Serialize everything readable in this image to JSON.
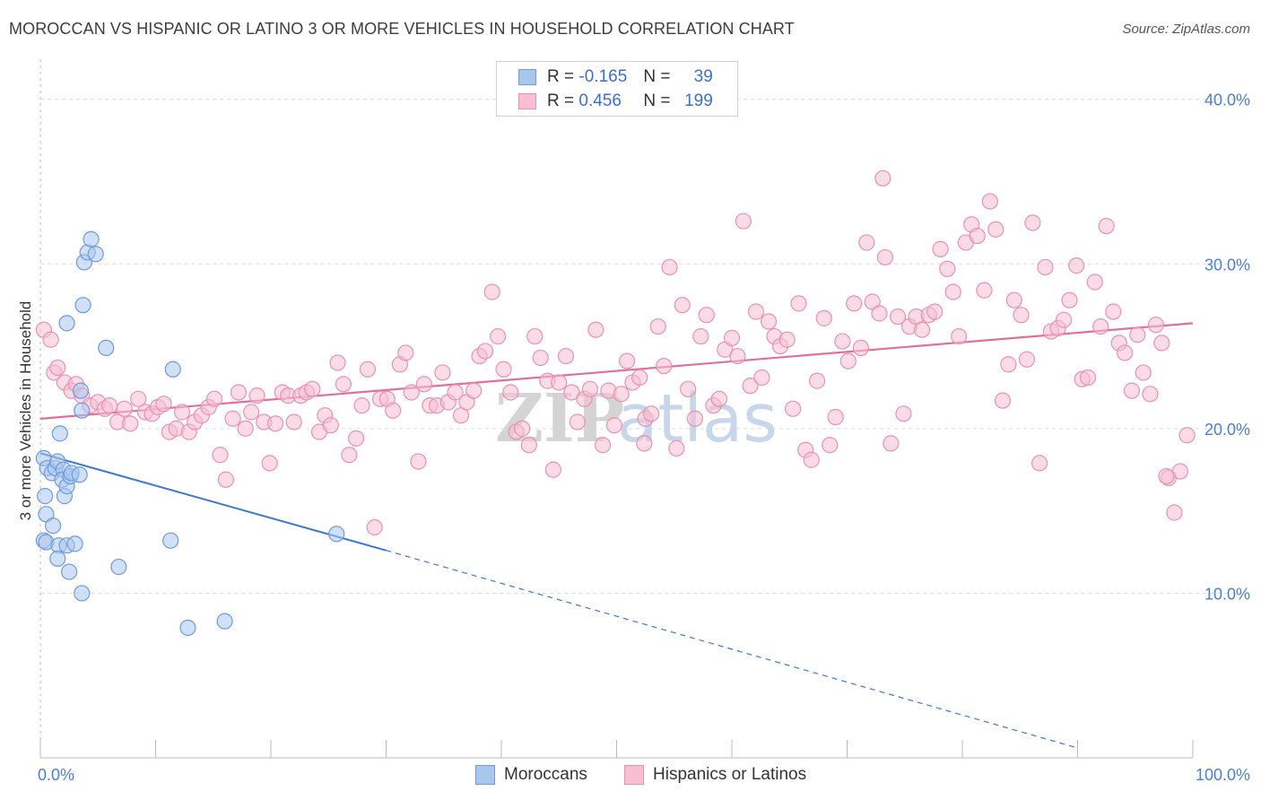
{
  "title": "MOROCCAN VS HISPANIC OR LATINO 3 OR MORE VEHICLES IN HOUSEHOLD CORRELATION CHART",
  "source": "Source: ZipAtlas.com",
  "watermark": {
    "zip": "ZIP",
    "atlas": "atlas"
  },
  "legend": {
    "rows": [
      {
        "r_label": "R =",
        "r_value": "-0.165",
        "n_label": "N =",
        "n_value": "39",
        "color": "#a9c6ef",
        "border": "#6f9ad8"
      },
      {
        "r_label": "R =",
        "r_value": "0.456",
        "n_label": "N =",
        "n_value": "199",
        "color": "#f7bfd1",
        "border": "#e792ae"
      }
    ]
  },
  "bottom_legend": [
    {
      "label": "Moroccans",
      "color": "#a9c6ef",
      "border": "#6f9ad8"
    },
    {
      "label": "Hispanics or Latinos",
      "color": "#f7bfd1",
      "border": "#e792ae"
    }
  ],
  "chart_data": {
    "type": "scatter",
    "title": "MOROCCAN VS HISPANIC OR LATINO 3 OR MORE VEHICLES IN HOUSEHOLD CORRELATION CHART",
    "xlabel": "",
    "ylabel": "3 or more Vehicles in Household",
    "xlim": [
      0,
      100
    ],
    "ylim": [
      0,
      42
    ],
    "x_tick_labels": [
      "0.0%",
      "100.0%"
    ],
    "y_ticks": [
      10,
      20,
      30,
      40
    ],
    "y_tick_labels": [
      "10.0%",
      "20.0%",
      "30.0%",
      "40.0%"
    ],
    "grid": true,
    "legend_position": "top-center",
    "series": [
      {
        "name": "Moroccans",
        "color": "#6f9ad8",
        "fill": "#a9c6ef",
        "trend": {
          "x": [
            0,
            30
          ],
          "y": [
            18.5,
            12.6
          ],
          "dashed_to": [
            90,
            0.6
          ],
          "color": "#3a78d4"
        },
        "points": [
          [
            0.3,
            18.2
          ],
          [
            0.6,
            17.6
          ],
          [
            1.0,
            17.3
          ],
          [
            1.3,
            17.6
          ],
          [
            1.5,
            18.0
          ],
          [
            1.7,
            19.7
          ],
          [
            2.0,
            17.5
          ],
          [
            1.9,
            16.9
          ],
          [
            2.1,
            15.9
          ],
          [
            2.3,
            16.5
          ],
          [
            2.6,
            17.1
          ],
          [
            2.7,
            17.3
          ],
          [
            3.4,
            17.2
          ],
          [
            3.6,
            21.1
          ],
          [
            3.5,
            22.3
          ],
          [
            3.7,
            27.5
          ],
          [
            2.3,
            26.4
          ],
          [
            3.8,
            30.1
          ],
          [
            4.1,
            30.7
          ],
          [
            4.4,
            31.5
          ],
          [
            4.8,
            30.6
          ],
          [
            5.7,
            24.9
          ],
          [
            0.4,
            15.9
          ],
          [
            0.5,
            14.8
          ],
          [
            1.1,
            14.1
          ],
          [
            0.3,
            13.2
          ],
          [
            0.5,
            13.1
          ],
          [
            1.6,
            12.9
          ],
          [
            2.3,
            12.9
          ],
          [
            3.0,
            13.0
          ],
          [
            1.5,
            12.1
          ],
          [
            2.5,
            11.3
          ],
          [
            3.6,
            10.0
          ],
          [
            6.8,
            11.6
          ],
          [
            11.3,
            13.2
          ],
          [
            11.5,
            23.6
          ],
          [
            12.8,
            7.9
          ],
          [
            16.0,
            8.3
          ],
          [
            25.7,
            13.6
          ]
        ]
      },
      {
        "name": "Hispanics or Latinos",
        "color": "#e792ae",
        "fill": "#f7bfd1",
        "trend": {
          "x": [
            0,
            100
          ],
          "y": [
            20.6,
            26.4
          ],
          "color": "#e0709a"
        },
        "points": [
          [
            0.3,
            26.0
          ],
          [
            0.9,
            25.4
          ],
          [
            1.2,
            23.4
          ],
          [
            1.5,
            23.7
          ],
          [
            2.1,
            22.8
          ],
          [
            2.7,
            22.3
          ],
          [
            3.1,
            22.7
          ],
          [
            3.6,
            22.0
          ],
          [
            4.3,
            21.4
          ],
          [
            5.0,
            21.6
          ],
          [
            5.6,
            21.2
          ],
          [
            6.0,
            21.4
          ],
          [
            6.7,
            20.4
          ],
          [
            7.3,
            21.2
          ],
          [
            7.8,
            20.3
          ],
          [
            8.5,
            21.8
          ],
          [
            9.1,
            21.0
          ],
          [
            9.7,
            20.9
          ],
          [
            10.2,
            21.3
          ],
          [
            10.7,
            21.5
          ],
          [
            11.2,
            19.8
          ],
          [
            11.8,
            20.0
          ],
          [
            12.3,
            21.0
          ],
          [
            12.9,
            19.8
          ],
          [
            13.4,
            20.4
          ],
          [
            14.0,
            20.8
          ],
          [
            14.6,
            21.3
          ],
          [
            15.1,
            21.8
          ],
          [
            15.6,
            18.4
          ],
          [
            16.1,
            16.9
          ],
          [
            16.7,
            20.6
          ],
          [
            17.2,
            22.2
          ],
          [
            17.8,
            20.0
          ],
          [
            18.3,
            21.0
          ],
          [
            18.8,
            22.0
          ],
          [
            19.4,
            20.4
          ],
          [
            19.9,
            17.9
          ],
          [
            20.4,
            20.3
          ],
          [
            21.0,
            22.2
          ],
          [
            21.5,
            22.0
          ],
          [
            22.0,
            20.4
          ],
          [
            22.6,
            22.0
          ],
          [
            23.1,
            22.2
          ],
          [
            23.6,
            22.4
          ],
          [
            24.2,
            19.8
          ],
          [
            24.7,
            20.8
          ],
          [
            25.2,
            20.2
          ],
          [
            25.8,
            24.0
          ],
          [
            26.3,
            22.7
          ],
          [
            26.8,
            18.4
          ],
          [
            27.4,
            19.4
          ],
          [
            27.9,
            21.4
          ],
          [
            28.4,
            23.6
          ],
          [
            29.0,
            14.0
          ],
          [
            29.5,
            21.8
          ],
          [
            30.1,
            21.8
          ],
          [
            30.6,
            21.1
          ],
          [
            31.2,
            23.9
          ],
          [
            31.7,
            24.6
          ],
          [
            32.2,
            22.2
          ],
          [
            32.8,
            18.0
          ],
          [
            33.3,
            22.7
          ],
          [
            33.8,
            21.4
          ],
          [
            34.4,
            21.4
          ],
          [
            34.9,
            23.4
          ],
          [
            35.4,
            21.6
          ],
          [
            36.0,
            22.2
          ],
          [
            36.5,
            20.8
          ],
          [
            37.0,
            21.6
          ],
          [
            37.6,
            22.3
          ],
          [
            38.1,
            24.4
          ],
          [
            38.6,
            24.7
          ],
          [
            39.2,
            28.3
          ],
          [
            39.7,
            25.6
          ],
          [
            40.2,
            23.6
          ],
          [
            40.8,
            22.2
          ],
          [
            41.3,
            19.8
          ],
          [
            41.8,
            20.0
          ],
          [
            42.4,
            19.0
          ],
          [
            42.9,
            25.6
          ],
          [
            43.4,
            24.3
          ],
          [
            44.0,
            22.9
          ],
          [
            44.5,
            17.5
          ],
          [
            45.0,
            22.8
          ],
          [
            45.6,
            24.4
          ],
          [
            46.1,
            22.2
          ],
          [
            46.6,
            20.4
          ],
          [
            47.2,
            21.8
          ],
          [
            47.7,
            22.4
          ],
          [
            48.2,
            26.0
          ],
          [
            48.8,
            19.0
          ],
          [
            49.3,
            22.3
          ],
          [
            49.8,
            20.2
          ],
          [
            50.4,
            22.1
          ],
          [
            50.9,
            24.1
          ],
          [
            51.4,
            22.8
          ],
          [
            52.0,
            23.1
          ],
          [
            52.5,
            20.6
          ],
          [
            53.0,
            20.9
          ],
          [
            53.6,
            26.2
          ],
          [
            54.1,
            23.8
          ],
          [
            54.6,
            29.8
          ],
          [
            55.2,
            18.8
          ],
          [
            55.7,
            27.5
          ],
          [
            56.2,
            22.4
          ],
          [
            56.8,
            20.6
          ],
          [
            57.3,
            25.6
          ],
          [
            57.8,
            26.9
          ],
          [
            58.4,
            21.4
          ],
          [
            58.9,
            21.8
          ],
          [
            59.4,
            24.8
          ],
          [
            60.0,
            25.5
          ],
          [
            60.5,
            24.4
          ],
          [
            61.0,
            32.6
          ],
          [
            61.6,
            22.6
          ],
          [
            62.1,
            27.1
          ],
          [
            62.6,
            23.1
          ],
          [
            63.2,
            26.5
          ],
          [
            63.7,
            25.6
          ],
          [
            64.2,
            25.0
          ],
          [
            64.8,
            25.4
          ],
          [
            65.3,
            21.2
          ],
          [
            65.8,
            27.6
          ],
          [
            66.4,
            18.7
          ],
          [
            66.9,
            18.1
          ],
          [
            67.4,
            22.9
          ],
          [
            68.0,
            26.7
          ],
          [
            68.5,
            19.0
          ],
          [
            69.0,
            20.7
          ],
          [
            69.6,
            25.3
          ],
          [
            70.1,
            24.1
          ],
          [
            70.6,
            27.6
          ],
          [
            71.2,
            24.9
          ],
          [
            71.7,
            31.3
          ],
          [
            72.2,
            27.7
          ],
          [
            72.8,
            27.0
          ],
          [
            73.3,
            30.4
          ],
          [
            73.8,
            19.1
          ],
          [
            74.4,
            26.8
          ],
          [
            74.9,
            20.9
          ],
          [
            75.4,
            26.2
          ],
          [
            76.0,
            26.8
          ],
          [
            76.5,
            26.0
          ],
          [
            77.1,
            26.9
          ],
          [
            77.6,
            27.1
          ],
          [
            78.1,
            30.9
          ],
          [
            78.7,
            29.7
          ],
          [
            79.2,
            28.3
          ],
          [
            79.7,
            25.6
          ],
          [
            80.3,
            31.3
          ],
          [
            80.8,
            32.4
          ],
          [
            81.3,
            31.7
          ],
          [
            81.9,
            28.4
          ],
          [
            82.4,
            33.8
          ],
          [
            82.9,
            32.1
          ],
          [
            83.5,
            21.7
          ],
          [
            84.0,
            23.9
          ],
          [
            84.5,
            27.8
          ],
          [
            85.1,
            26.9
          ],
          [
            85.6,
            24.2
          ],
          [
            86.1,
            32.5
          ],
          [
            86.7,
            17.9
          ],
          [
            87.2,
            29.8
          ],
          [
            87.7,
            25.9
          ],
          [
            88.3,
            26.1
          ],
          [
            88.8,
            26.6
          ],
          [
            89.3,
            27.8
          ],
          [
            89.9,
            29.9
          ],
          [
            90.4,
            23.0
          ],
          [
            90.9,
            23.1
          ],
          [
            91.5,
            28.9
          ],
          [
            92.0,
            26.2
          ],
          [
            92.5,
            32.3
          ],
          [
            93.1,
            27.1
          ],
          [
            93.6,
            25.2
          ],
          [
            94.1,
            24.6
          ],
          [
            94.7,
            22.3
          ],
          [
            95.2,
            25.7
          ],
          [
            95.7,
            23.4
          ],
          [
            96.3,
            22.1
          ],
          [
            96.8,
            26.3
          ],
          [
            97.3,
            25.2
          ],
          [
            97.9,
            17.0
          ],
          [
            98.4,
            14.9
          ],
          [
            98.9,
            17.4
          ],
          [
            99.5,
            19.6
          ],
          [
            97.7,
            17.1
          ],
          [
            73.1,
            35.2
          ],
          [
            52.4,
            19.1
          ]
        ]
      }
    ]
  }
}
